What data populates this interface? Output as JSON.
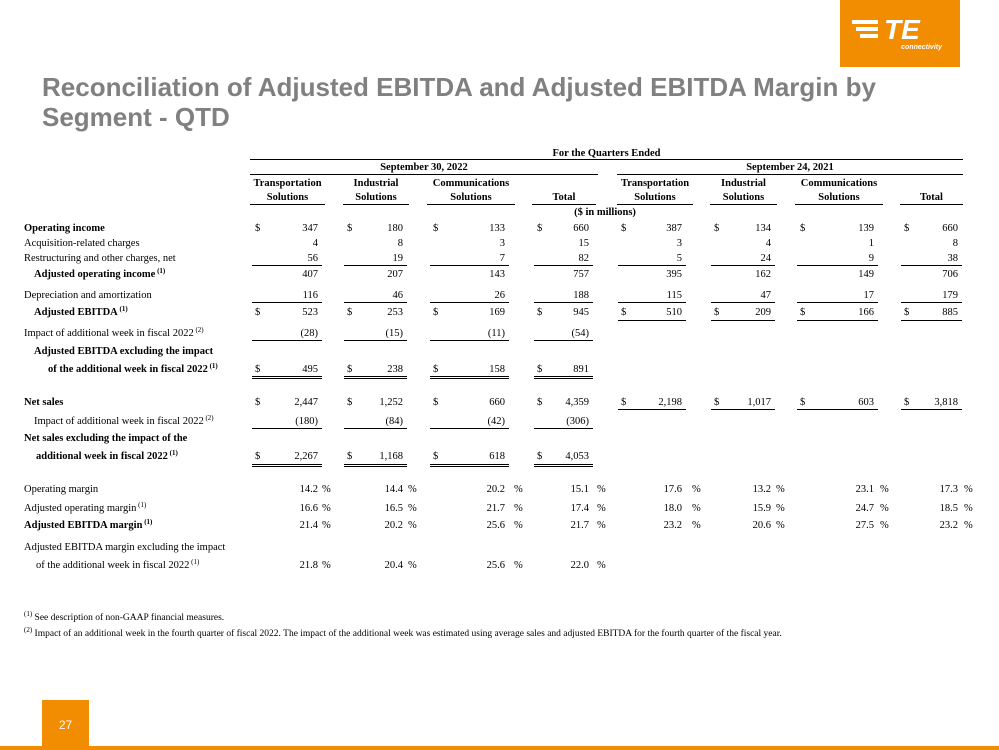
{
  "logo": {
    "wordmark": "TE",
    "tagline": "connectivity"
  },
  "title": "Reconciliation of Adjusted EBITDA and Adjusted EBITDA Margin by Segment - QTD",
  "header": {
    "period_title": "For the Quarters Ended",
    "period1": "September 30, 2022",
    "period2": "September 24, 2021",
    "cols": [
      [
        "Transportation",
        "Solutions"
      ],
      [
        "Industrial",
        "Solutions"
      ],
      [
        "Communications",
        "Solutions"
      ],
      [
        "",
        "Total"
      ],
      [
        "Transportation",
        "Solutions"
      ],
      [
        "Industrial",
        "Solutions"
      ],
      [
        "Communications",
        "Solutions"
      ],
      [
        "",
        "Total"
      ]
    ],
    "units": "($ in millions)"
  },
  "rows": [
    {
      "label": "Operating income",
      "sup": "",
      "d": true,
      "v": [
        "347",
        "180",
        "133",
        "660",
        "387",
        "134",
        "139",
        "660"
      ]
    },
    {
      "label": "Acquisition-related charges",
      "sup": "",
      "v": [
        "4",
        "8",
        "3",
        "15",
        "3",
        "4",
        "1",
        "8"
      ]
    },
    {
      "label": "Restructuring and other charges, net",
      "sup": "",
      "v": [
        "56",
        "19",
        "7",
        "82",
        "5",
        "24",
        "9",
        "38"
      ]
    },
    {
      "label": "Adjusted operating income",
      "sup": "(1)",
      "v": [
        "407",
        "207",
        "143",
        "757",
        "395",
        "162",
        "149",
        "706"
      ]
    },
    {
      "label": "Depreciation and amortization",
      "sup": "",
      "v": [
        "116",
        "46",
        "26",
        "188",
        "115",
        "47",
        "17",
        "179"
      ]
    },
    {
      "label": "Adjusted EBITDA",
      "sup": "(1)",
      "d": true,
      "v": [
        "523",
        "253",
        "169",
        "945",
        "510",
        "209",
        "166",
        "885"
      ]
    },
    {
      "label": "Impact of additional week in fiscal 2022",
      "sup": "(2)",
      "v": [
        "(28)",
        "(15)",
        "(11)",
        "(54)"
      ]
    },
    {
      "label": "Adjusted EBITDA excluding the impact",
      "label2": "of the additional week in fiscal 2022",
      "sup": "(1)",
      "d": true,
      "v": [
        "495",
        "238",
        "158",
        "891"
      ]
    },
    {
      "label": "Net sales",
      "sup": "",
      "d": true,
      "v": [
        "2,447",
        "1,252",
        "660",
        "4,359",
        "2,198",
        "1,017",
        "603",
        "3,818"
      ]
    },
    {
      "label": "Impact of additional week in fiscal 2022",
      "sup": "(2)",
      "v": [
        "(180)",
        "(84)",
        "(42)",
        "(306)"
      ]
    },
    {
      "label": "Net sales excluding the impact of the",
      "label2": "additional week in fiscal 2022",
      "sup": "(1)",
      "d": true,
      "v": [
        "2,267",
        "1,168",
        "618",
        "4,053"
      ]
    },
    {
      "label": "Operating margin",
      "sup": "",
      "v": [
        "14.2",
        "14.4",
        "20.2",
        "15.1",
        "17.6",
        "13.2",
        "23.1",
        "17.3"
      ]
    },
    {
      "label": "Adjusted operating margin",
      "sup": "(1)",
      "v": [
        "16.6",
        "16.5",
        "21.7",
        "17.4",
        "18.0",
        "15.9",
        "24.7",
        "18.5"
      ]
    },
    {
      "label": "Adjusted EBITDA margin",
      "sup": "(1)",
      "v": [
        "21.4",
        "20.2",
        "25.6",
        "21.7",
        "23.2",
        "20.6",
        "27.5",
        "23.2"
      ]
    },
    {
      "label": "Adjusted EBITDA margin excluding the impact",
      "label2": "of the additional week in fiscal 2022",
      "sup": "(1)",
      "v": [
        "21.8",
        "20.4",
        "25.6",
        "22.0"
      ]
    }
  ],
  "currency_symbol": "$",
  "percent_symbol": "%",
  "footnotes": [
    {
      "mark": "(1)",
      "text": "See description of non-GAAP financial measures."
    },
    {
      "mark": "(2)",
      "text": "Impact of an additional week in the fourth quarter of fiscal 2022. The impact of the additional week was estimated using average sales and adjusted EBITDA for the fourth quarter of the fiscal year."
    }
  ],
  "page_number": "27",
  "colors": {
    "accent": "#f28c00",
    "title": "#808080"
  }
}
